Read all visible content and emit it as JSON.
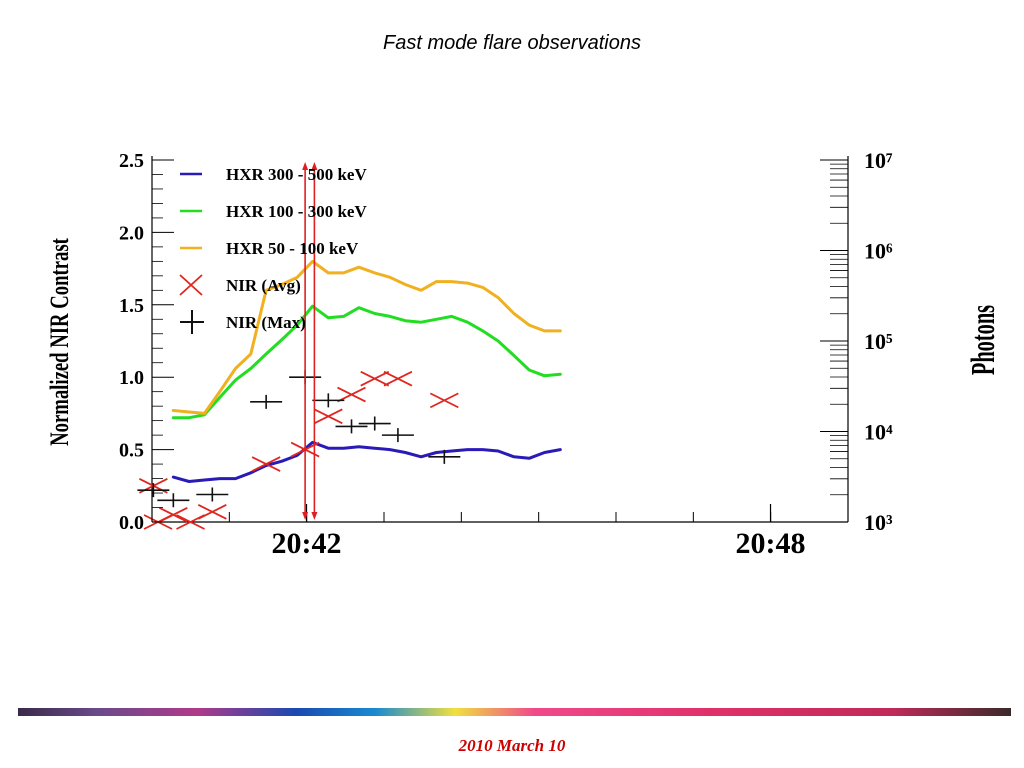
{
  "slide": {
    "title": "Fast mode flare observations",
    "footer_date": "2010 March 10"
  },
  "chart_data": {
    "type": "line",
    "xlabel": "",
    "ylabel_left": "Normalized NIR Contrast",
    "ylabel_right": "Photons",
    "x_unit": "minutes (UT)",
    "xlim": [
      20.6667,
      20.8167
    ],
    "x_tick_labels": [
      {
        "x": 20.7,
        "label": "20:42"
      },
      {
        "x": 20.8,
        "label": "20:48"
      }
    ],
    "ylim_left": [
      0,
      2.5
    ],
    "y_ticks_left": [
      {
        "v": 0.0,
        "label": "0.0"
      },
      {
        "v": 0.5,
        "label": "0.5"
      },
      {
        "v": 1.0,
        "label": "1.0"
      },
      {
        "v": 1.5,
        "label": "1.5"
      },
      {
        "v": 2.0,
        "label": "2.0"
      },
      {
        "v": 2.5,
        "label": "2.5"
      }
    ],
    "y_right_scale": "log",
    "ylim_right_exp": [
      3,
      7
    ],
    "y_ticks_right": [
      {
        "exp": 3,
        "label": "10³"
      },
      {
        "exp": 4,
        "label": "10⁴"
      },
      {
        "exp": 5,
        "label": "10⁵"
      },
      {
        "exp": 6,
        "label": "10⁶"
      },
      {
        "exp": 7,
        "label": "10⁷"
      }
    ],
    "markers_vertical": [
      20.6997,
      20.7017
    ],
    "legend_position": "top-left",
    "grid": false,
    "series": [
      {
        "name": "HXR 300 - 500 keV",
        "kind": "line",
        "color": "#2a1ab8",
        "points": [
          [
            20.6713,
            0.31
          ],
          [
            20.6747,
            0.28
          ],
          [
            20.678,
            0.29
          ],
          [
            20.6813,
            0.3
          ],
          [
            20.6847,
            0.3
          ],
          [
            20.688,
            0.34
          ],
          [
            20.6913,
            0.39
          ],
          [
            20.6947,
            0.42
          ],
          [
            20.698,
            0.46
          ],
          [
            20.7013,
            0.55
          ],
          [
            20.7047,
            0.51
          ],
          [
            20.708,
            0.51
          ],
          [
            20.7113,
            0.52
          ],
          [
            20.7147,
            0.51
          ],
          [
            20.718,
            0.5
          ],
          [
            20.7213,
            0.48
          ],
          [
            20.7247,
            0.45
          ],
          [
            20.728,
            0.48
          ],
          [
            20.7313,
            0.49
          ],
          [
            20.7347,
            0.5
          ],
          [
            20.738,
            0.5
          ],
          [
            20.7413,
            0.49
          ],
          [
            20.7447,
            0.45
          ],
          [
            20.748,
            0.44
          ],
          [
            20.7513,
            0.48
          ],
          [
            20.7547,
            0.5
          ]
        ]
      },
      {
        "name": "HXR 100 - 300 keV",
        "kind": "line",
        "color": "#22dd22",
        "points": [
          [
            20.6713,
            0.72
          ],
          [
            20.6747,
            0.72
          ],
          [
            20.678,
            0.74
          ],
          [
            20.6813,
            0.86
          ],
          [
            20.6847,
            0.98
          ],
          [
            20.688,
            1.06
          ],
          [
            20.6913,
            1.16
          ],
          [
            20.6947,
            1.26
          ],
          [
            20.698,
            1.36
          ],
          [
            20.7013,
            1.49
          ],
          [
            20.7047,
            1.41
          ],
          [
            20.708,
            1.42
          ],
          [
            20.7113,
            1.48
          ],
          [
            20.7147,
            1.44
          ],
          [
            20.718,
            1.42
          ],
          [
            20.7213,
            1.39
          ],
          [
            20.7247,
            1.38
          ],
          [
            20.728,
            1.4
          ],
          [
            20.7313,
            1.42
          ],
          [
            20.7347,
            1.38
          ],
          [
            20.738,
            1.32
          ],
          [
            20.7413,
            1.25
          ],
          [
            20.7447,
            1.15
          ],
          [
            20.748,
            1.05
          ],
          [
            20.7513,
            1.01
          ],
          [
            20.7547,
            1.02
          ]
        ]
      },
      {
        "name": "HXR 50 - 100 keV",
        "kind": "line",
        "color": "#f0b020",
        "points": [
          [
            20.6713,
            0.77
          ],
          [
            20.6747,
            0.76
          ],
          [
            20.678,
            0.75
          ],
          [
            20.6813,
            0.9
          ],
          [
            20.6847,
            1.06
          ],
          [
            20.688,
            1.16
          ],
          [
            20.6913,
            1.6
          ],
          [
            20.6947,
            1.64
          ],
          [
            20.698,
            1.69
          ],
          [
            20.7013,
            1.8
          ],
          [
            20.7047,
            1.72
          ],
          [
            20.708,
            1.72
          ],
          [
            20.7113,
            1.76
          ],
          [
            20.7147,
            1.72
          ],
          [
            20.718,
            1.69
          ],
          [
            20.7213,
            1.64
          ],
          [
            20.7247,
            1.6
          ],
          [
            20.728,
            1.66
          ],
          [
            20.7313,
            1.66
          ],
          [
            20.7347,
            1.65
          ],
          [
            20.738,
            1.62
          ],
          [
            20.7413,
            1.55
          ],
          [
            20.7447,
            1.44
          ],
          [
            20.748,
            1.36
          ],
          [
            20.7513,
            1.32
          ],
          [
            20.7547,
            1.32
          ]
        ]
      },
      {
        "name": "NIR (Avg)",
        "kind": "x-marker",
        "color": "#e0261e",
        "points": [
          [
            20.667,
            0.25
          ],
          [
            20.668,
            0.0
          ],
          [
            20.6713,
            0.05
          ],
          [
            20.675,
            0.0
          ],
          [
            20.6797,
            0.07
          ],
          [
            20.6913,
            0.4
          ],
          [
            20.6997,
            0.5
          ],
          [
            20.7047,
            0.73
          ],
          [
            20.7097,
            0.88
          ],
          [
            20.7147,
            0.99
          ],
          [
            20.7197,
            0.99
          ],
          [
            20.7297,
            0.84
          ]
        ]
      },
      {
        "name": "NIR (Max)",
        "kind": "plus-marker",
        "color": "#111111",
        "points": [
          [
            20.667,
            0.22
          ],
          [
            20.6713,
            0.15
          ],
          [
            20.6797,
            0.19
          ],
          [
            20.6913,
            0.83
          ],
          [
            20.6997,
            1.0
          ],
          [
            20.7047,
            0.84
          ],
          [
            20.7097,
            0.66
          ],
          [
            20.7147,
            0.68
          ],
          [
            20.7197,
            0.6
          ],
          [
            20.7297,
            0.45
          ]
        ]
      }
    ]
  }
}
